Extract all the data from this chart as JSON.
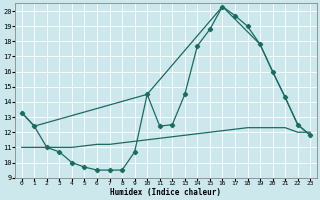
{
  "xlabel": "Humidex (Indice chaleur)",
  "bg_color": "#cce8ec",
  "line_color": "#1a6b62",
  "grid_color": "#ffffff",
  "xlim": [
    -0.5,
    23.5
  ],
  "ylim": [
    9,
    20.5
  ],
  "yticks": [
    9,
    10,
    11,
    12,
    13,
    14,
    15,
    16,
    17,
    18,
    19,
    20
  ],
  "xticks": [
    0,
    1,
    2,
    3,
    4,
    5,
    6,
    7,
    8,
    9,
    10,
    11,
    12,
    13,
    14,
    15,
    16,
    17,
    18,
    19,
    20,
    21,
    22,
    23
  ],
  "line1_x": [
    0,
    1,
    2,
    3,
    4,
    5,
    6,
    7,
    8,
    9,
    10,
    11,
    12,
    13,
    14,
    15,
    16,
    17,
    18,
    19,
    20,
    21,
    22,
    23
  ],
  "line1_y": [
    13.3,
    12.4,
    11.0,
    10.7,
    10.0,
    9.7,
    9.5,
    9.5,
    9.5,
    10.7,
    14.5,
    12.4,
    12.5,
    14.5,
    17.7,
    18.8,
    20.3,
    19.7,
    19.0,
    17.8,
    16.0,
    14.3,
    12.5,
    11.8
  ],
  "line2_x": [
    0,
    1,
    10,
    16,
    19,
    20,
    21,
    22,
    23
  ],
  "line2_y": [
    13.3,
    12.4,
    14.5,
    20.3,
    17.8,
    16.0,
    14.3,
    12.5,
    11.8
  ],
  "line3_x": [
    0,
    1,
    2,
    3,
    4,
    5,
    6,
    7,
    8,
    9,
    10,
    11,
    12,
    13,
    14,
    15,
    16,
    17,
    18,
    19,
    20,
    21,
    22,
    23
  ],
  "line3_y": [
    11.0,
    11.0,
    11.0,
    11.0,
    11.0,
    11.1,
    11.2,
    11.2,
    11.3,
    11.4,
    11.5,
    11.6,
    11.7,
    11.8,
    11.9,
    12.0,
    12.1,
    12.2,
    12.3,
    12.3,
    12.3,
    12.3,
    12.0,
    12.0
  ]
}
